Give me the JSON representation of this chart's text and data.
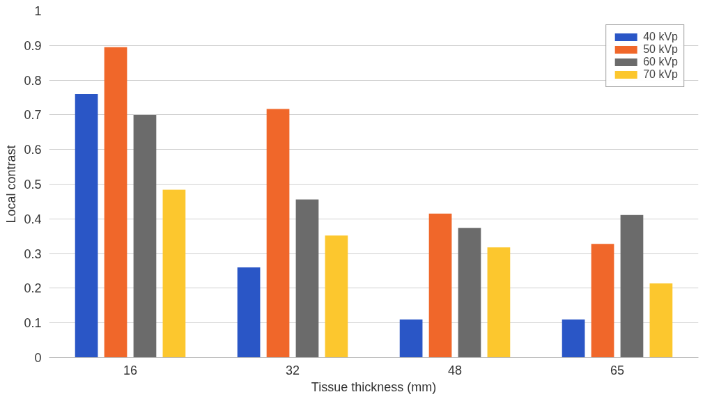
{
  "chart_data": {
    "type": "bar",
    "xlabel": "Tissue thickness (mm)",
    "ylabel": "Local contrast",
    "categories": [
      "16",
      "32",
      "48",
      "65"
    ],
    "series": [
      {
        "name": "40 kVp",
        "color": "#2a56c6",
        "values": [
          0.76,
          0.26,
          0.11,
          0.11
        ]
      },
      {
        "name": "50 kVp",
        "color": "#f0672a",
        "values": [
          0.895,
          0.717,
          0.415,
          0.328
        ]
      },
      {
        "name": "60 kVp",
        "color": "#6b6b6b",
        "values": [
          0.7,
          0.456,
          0.374,
          0.411
        ]
      },
      {
        "name": "70 kVp",
        "color": "#fcc72e",
        "values": [
          0.484,
          0.352,
          0.318,
          0.214
        ]
      }
    ],
    "ylim": [
      0,
      1
    ],
    "yticks": [
      0,
      0.1,
      0.2,
      0.3,
      0.4,
      0.5,
      0.6,
      0.7,
      0.8,
      0.9,
      1
    ],
    "grid": "y",
    "legend": "top right"
  }
}
